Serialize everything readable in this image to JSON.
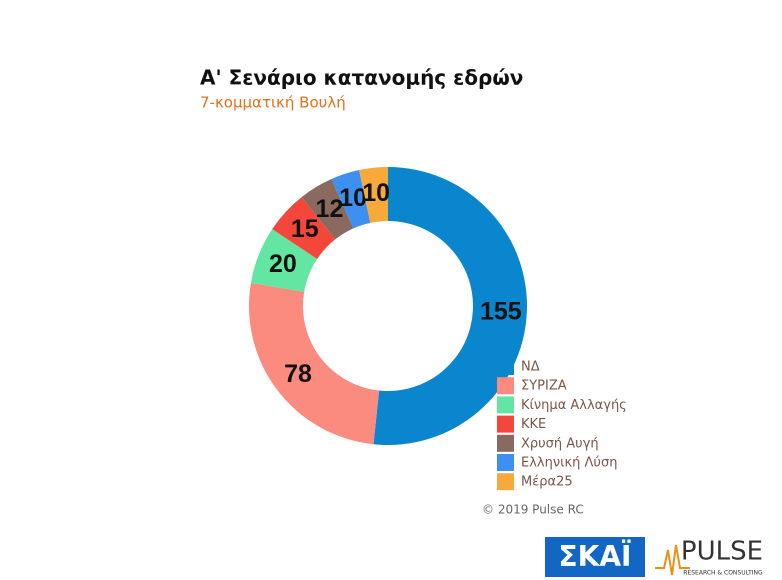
{
  "chart_data": {
    "type": "donut",
    "title": "Α' Σενάριο κατανομής εδρών",
    "subtitle": "7-κομματική Βουλή",
    "categories": [
      "ΝΔ",
      "ΣΥΡΙΖΑ",
      "Κίνημα Αλλαγής",
      "ΚΚΕ",
      "Χρυσή Αυγή",
      "Ελληνική Λύση",
      "Μέρα25"
    ],
    "values": [
      155,
      78,
      20,
      15,
      12,
      10,
      10
    ],
    "colors": [
      "#0a86cf",
      "#fb8a7f",
      "#63e6a2",
      "#f2473a",
      "#8a6a5f",
      "#3d8ff0",
      "#f7aa3a"
    ],
    "legend": "bottom-right",
    "source": "© 2019 Pulse RC"
  },
  "logos": {
    "skai": "ΣΚΑΪ",
    "pulse": "PULSE",
    "pulse_tagline": "RESEARCH & CONSULTING"
  }
}
